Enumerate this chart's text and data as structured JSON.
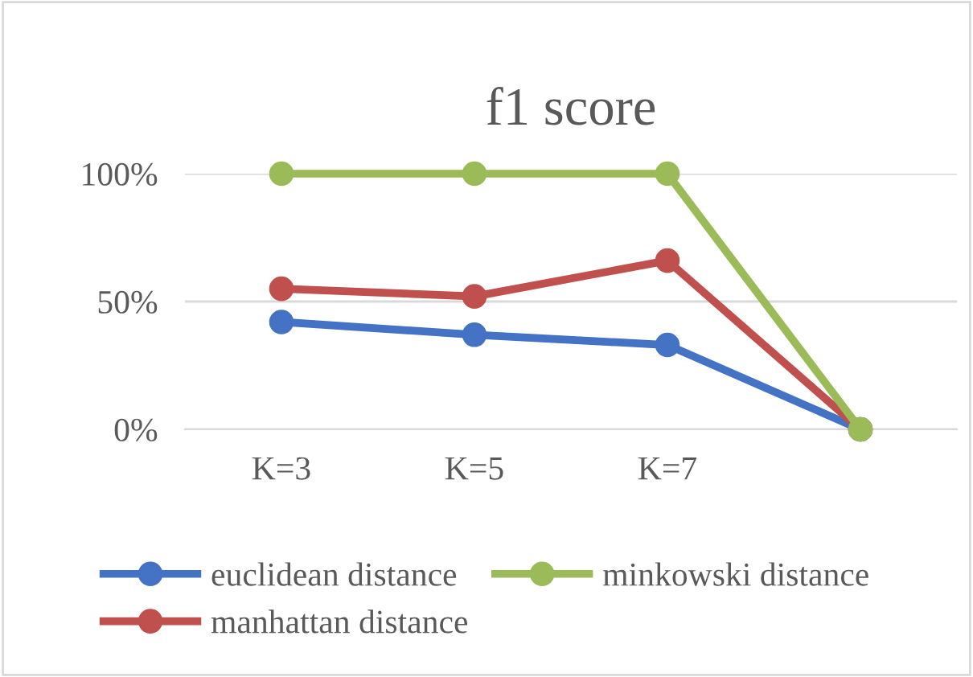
{
  "chart_data": {
    "type": "line",
    "title": "f1 score",
    "categories": [
      "K=3",
      "K=5",
      "K=7",
      null
    ],
    "series": [
      {
        "name": "euclidean distance",
        "color": "#4472c4",
        "values": [
          42,
          37,
          33,
          0
        ]
      },
      {
        "name": "manhattan distance",
        "color": "#c0504d",
        "values": [
          55,
          52,
          66,
          0
        ]
      },
      {
        "name": "minkowski distance",
        "color": "#9bbb59",
        "values": [
          100,
          100,
          100,
          0
        ]
      }
    ],
    "ylim": [
      0,
      100
    ],
    "yticks": [
      {
        "value": 0,
        "label": "0%"
      },
      {
        "value": 50,
        "label": "50%"
      },
      {
        "value": 100,
        "label": "100%"
      }
    ],
    "grid": "y",
    "legend": "bottom",
    "marker": "circle",
    "line_style": "solid"
  }
}
